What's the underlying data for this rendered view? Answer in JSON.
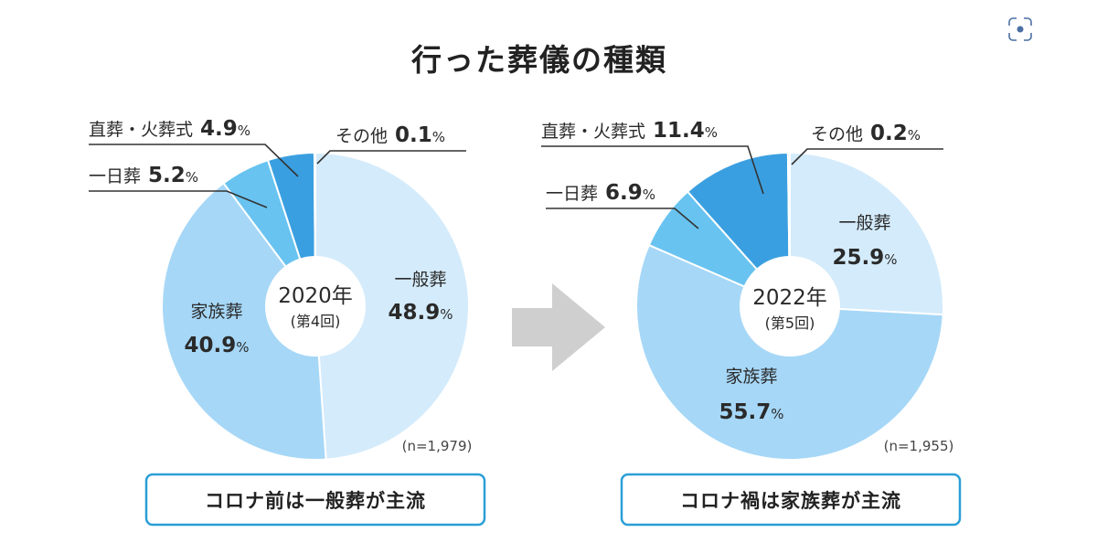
{
  "title": "行った葬儀の種類",
  "chart_data": [
    {
      "type": "pie",
      "center_year": "2020年",
      "center_round": "(第4回)",
      "sample": "(n=1,979)",
      "caption": "コロナ前は一般葬が主流",
      "segments": [
        {
          "name": "一般葬",
          "value": 48.9,
          "value_text": "48.9",
          "color": "#d4ebfb"
        },
        {
          "name": "家族葬",
          "value": 40.9,
          "value_text": "40.9",
          "color": "#a6d7f7"
        },
        {
          "name": "一日葬",
          "value": 5.2,
          "value_text": "5.2",
          "color": "#68c3f0"
        },
        {
          "name": "直葬・火葬式",
          "value": 4.9,
          "value_text": "4.9",
          "color": "#3a9fe0"
        },
        {
          "name": "その他",
          "value": 0.1,
          "value_text": "0.1",
          "color": "#1b78c4"
        }
      ]
    },
    {
      "type": "pie",
      "center_year": "2022年",
      "center_round": "(第5回)",
      "sample": "(n=1,955)",
      "caption": "コロナ禍は家族葬が主流",
      "segments": [
        {
          "name": "一般葬",
          "value": 25.9,
          "value_text": "25.9",
          "color": "#d4ebfb"
        },
        {
          "name": "家族葬",
          "value": 55.7,
          "value_text": "55.7",
          "color": "#a6d7f7"
        },
        {
          "name": "一日葬",
          "value": 6.9,
          "value_text": "6.9",
          "color": "#68c3f0"
        },
        {
          "name": "直葬・火葬式",
          "value": 11.4,
          "value_text": "11.4",
          "color": "#3a9fe0"
        },
        {
          "name": "その他",
          "value": 0.2,
          "value_text": "0.2",
          "color": "#1b78c4"
        }
      ]
    }
  ],
  "percent_sign": "%",
  "icons": {
    "arrow": "right-arrow-icon",
    "lens": "lens-icon"
  }
}
